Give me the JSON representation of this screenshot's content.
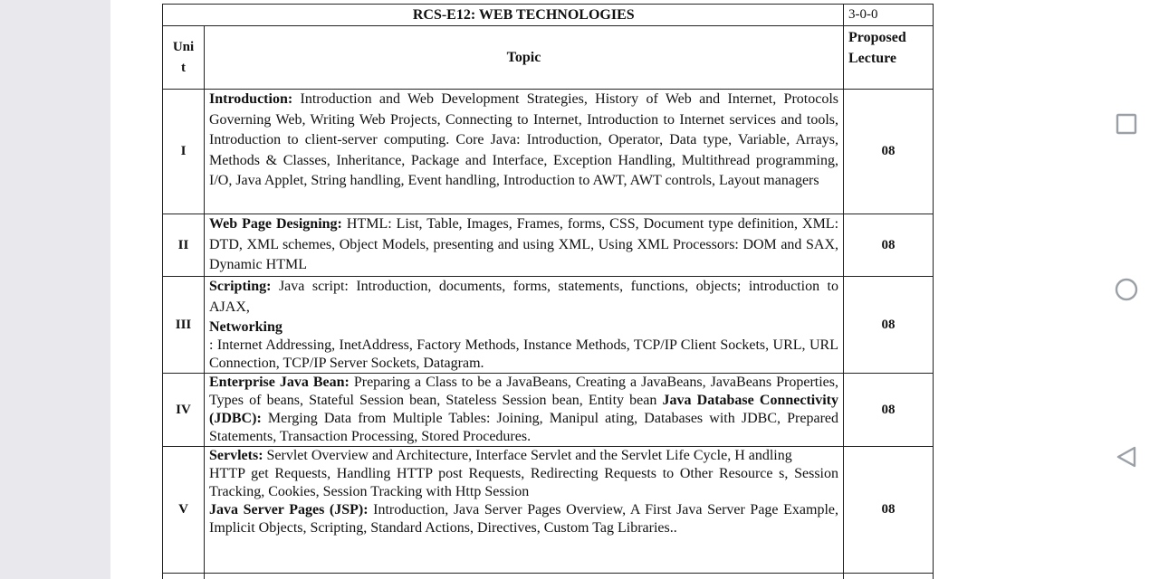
{
  "document": {
    "course_title": "RCS-E12: WEB TECHNOLOGIES",
    "credits": "3-0-0",
    "header": {
      "unit_line1": "Uni",
      "unit_line2": "t",
      "topic": "Topic",
      "lecture_line1": "Proposed",
      "lecture_line2": "Lecture"
    },
    "rows": [
      {
        "unit": "I",
        "lectures": "08",
        "heading": "Introduction:",
        "text": " Introduction and Web Development Strategies, History of Web and Internet, Protocols Governing Web, Writing Web Projects, Connecting to Internet, Introduction to Internet services and tools, Introduction to client-server computing. Core Java: Introduction, Operator, Data type, Variable, Arrays, Methods & Classes, Inheritance, Package and Interface, Exception Handling, Multithread programming, I/O, Java Applet, String handling, Event handling, Introduction to AWT, AWT controls, Layout managers"
      },
      {
        "unit": "II",
        "lectures": "08",
        "heading": "Web Page Designing:",
        "text": " HTML: List, Table, Images, Frames, forms, CSS, Document type definition, XML: DTD, XML schemes, Object Models, presenting and using XML, Using XML Processors: DOM and SAX, Dynamic HTML"
      },
      {
        "unit": "III",
        "lectures": "08",
        "heading": "Scripting:",
        "text": " Java script: Introduction, documents, forms, statements, functions, objects; introduction to AJAX,",
        "heading2": "Networking",
        "text2": ": Internet Addressing, InetAddress, Factory Methods, Instance Methods, TCP/IP Client Sockets, URL, URL Connection, TCP/IP Server Sockets, Datagram."
      },
      {
        "unit": "IV",
        "lectures": "08",
        "heading": "Enterprise Java Bean:",
        "text": " Preparing a Class to be a JavaBeans, Creating a JavaBeans, JavaBeans Properties, Types of beans, Stateful Session bean, Stateless Session bean, Entity bean",
        "heading2": "Java Database Connectivity (JDBC):",
        "text2": " Merging Data from Multiple Tables: Joining, Manipul ating, Databases with JDBC, Prepared Statements, Transaction Processing, Stored Procedures."
      },
      {
        "unit": "V",
        "lectures": "08",
        "heading": "Servlets:",
        "text": " Servlet Overview and Architecture, Interface Servlet and the Servlet Life Cycle, H andling",
        "text_b": "HTTP get Requests, Handling HTTP post Requests, Redirecting Requests to Other Resource s, Session Tracking, Cookies, Session Tracking with Http Session",
        "heading2": "Java Server Pages (JSP):",
        "text2": " Introduction, Java Server Pages Overview, A First Java Server Page Example, Implicit Objects, Scripting, Standard Actions, Directives, Custom Tag Libraries.."
      }
    ]
  },
  "nav": {
    "recents_icon": "square-icon",
    "home_icon": "circle-icon",
    "back_icon": "triangle-back-icon",
    "icon_color": "#9aa0a6"
  }
}
